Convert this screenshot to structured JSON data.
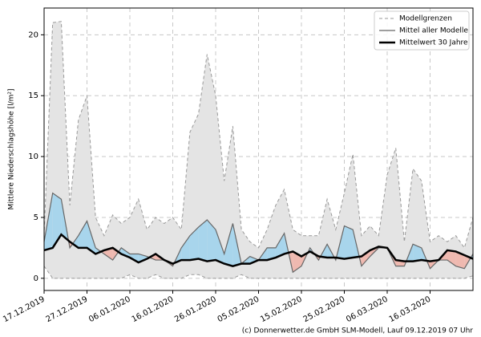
{
  "chart_data": {
    "type": "line",
    "y_label": "Mittlere Niederschlagshöhe [l/m²]",
    "footer": "(c) Donnerwetter.de GmbH SLM-Modell, Lauf 09.12.2019 07 Uhr",
    "x": [
      "2019-12-17",
      "2019-12-19",
      "2019-12-21",
      "2019-12-23",
      "2019-12-25",
      "2019-12-27",
      "2019-12-29",
      "2019-12-31",
      "2020-01-02",
      "2020-01-04",
      "2020-01-06",
      "2020-01-08",
      "2020-01-10",
      "2020-01-12",
      "2020-01-14",
      "2020-01-16",
      "2020-01-18",
      "2020-01-20",
      "2020-01-22",
      "2020-01-24",
      "2020-01-26",
      "2020-01-28",
      "2020-01-30",
      "2020-02-01",
      "2020-02-03",
      "2020-02-05",
      "2020-02-07",
      "2020-02-09",
      "2020-02-11",
      "2020-02-13",
      "2020-02-15",
      "2020-02-17",
      "2020-02-19",
      "2020-02-21",
      "2020-02-23",
      "2020-02-25",
      "2020-02-27",
      "2020-02-29",
      "2020-03-02",
      "2020-03-04",
      "2020-03-06",
      "2020-03-08",
      "2020-03-10",
      "2020-03-12",
      "2020-03-14",
      "2020-03-16",
      "2020-03-18",
      "2020-03-20",
      "2020-03-22",
      "2020-03-24",
      "2020-03-26"
    ],
    "series": [
      {
        "name": "Modellgrenzen",
        "color": "#999999",
        "values": [
          3.5,
          21,
          21.1,
          6,
          13,
          15,
          5,
          3.5,
          5.2,
          4.5,
          5,
          6.5,
          4,
          5,
          4.5,
          5,
          4,
          12,
          13.5,
          18.4,
          15,
          8,
          12.5,
          4,
          3,
          2.5,
          4,
          6,
          7.3,
          4,
          3.5,
          3.5,
          3.5,
          6.5,
          4,
          7,
          10.2,
          3.5,
          4.3,
          3.5,
          8.5,
          10.7,
          3,
          9,
          8,
          3,
          3.5,
          3,
          3.5,
          2.5,
          5
        ],
        "lower": [
          1,
          0,
          0,
          0,
          0,
          0,
          0,
          0,
          0,
          0,
          0.3,
          0,
          0,
          0.3,
          0,
          0,
          0,
          0.3,
          0.3,
          0,
          0,
          0,
          0,
          0.3,
          0,
          0,
          0,
          0,
          0,
          0,
          0,
          0,
          0,
          0,
          0,
          0,
          0,
          0,
          0,
          0,
          0,
          0,
          0,
          0,
          0,
          0,
          0,
          0,
          0,
          0,
          0.2
        ]
      },
      {
        "name": "Mittel aller Modelle",
        "color": "#666666",
        "values": [
          3,
          7,
          6.5,
          2.5,
          3.5,
          4.7,
          2.5,
          2,
          1.5,
          2.5,
          2,
          2,
          1.8,
          1.5,
          1.5,
          1,
          2.5,
          3.5,
          4.2,
          4.8,
          4,
          2,
          4.5,
          1.2,
          1.8,
          1.5,
          2.5,
          2.5,
          3.7,
          0.5,
          1,
          2.5,
          1.5,
          2.8,
          1.5,
          4.3,
          4,
          1,
          1.8,
          2.5,
          2.5,
          1,
          1,
          2.8,
          2.5,
          0.8,
          1.5,
          1.5,
          1,
          0.8,
          2
        ]
      },
      {
        "name": "Mittelwert 30 Jahre",
        "color": "#000000",
        "values": [
          2.3,
          2.5,
          3.6,
          3,
          2.5,
          2.5,
          2,
          2.3,
          2.5,
          2,
          1.7,
          1.3,
          1.6,
          2,
          1.5,
          1.2,
          1.5,
          1.5,
          1.6,
          1.4,
          1.5,
          1.2,
          1,
          1.2,
          1.2,
          1.5,
          1.5,
          1.7,
          2,
          2.2,
          1.8,
          2.2,
          1.8,
          1.7,
          1.7,
          1.6,
          1.7,
          1.8,
          2.3,
          2.6,
          2.5,
          1.5,
          1.4,
          1.4,
          1.5,
          1.4,
          1.5,
          2.3,
          2.2,
          1.9,
          1.6
        ]
      }
    ],
    "above_color": "#a8d5ec",
    "below_color": "#efb9b0",
    "range_fill": "#e4e4e4",
    "xlim": [
      "2019-12-17",
      "2020-03-26"
    ],
    "xticks": [
      {
        "value": "2019-12-17",
        "label": "17.12.2019"
      },
      {
        "value": "2019-12-27",
        "label": "27.12.2019"
      },
      {
        "value": "2020-01-06",
        "label": "06.01.2020"
      },
      {
        "value": "2020-01-16",
        "label": "16.01.2020"
      },
      {
        "value": "2020-01-26",
        "label": "26.01.2020"
      },
      {
        "value": "2020-02-05",
        "label": "05.02.2020"
      },
      {
        "value": "2020-02-15",
        "label": "15.02.2020"
      },
      {
        "value": "2020-02-25",
        "label": "25.02.2020"
      },
      {
        "value": "2020-03-06",
        "label": "06.03.2020"
      },
      {
        "value": "2020-03-16",
        "label": "16.03.2020"
      }
    ],
    "ylim": [
      -1,
      22.2
    ],
    "yticks": [
      0,
      5,
      10,
      15,
      20
    ],
    "grid": true,
    "legend": "upper right"
  }
}
